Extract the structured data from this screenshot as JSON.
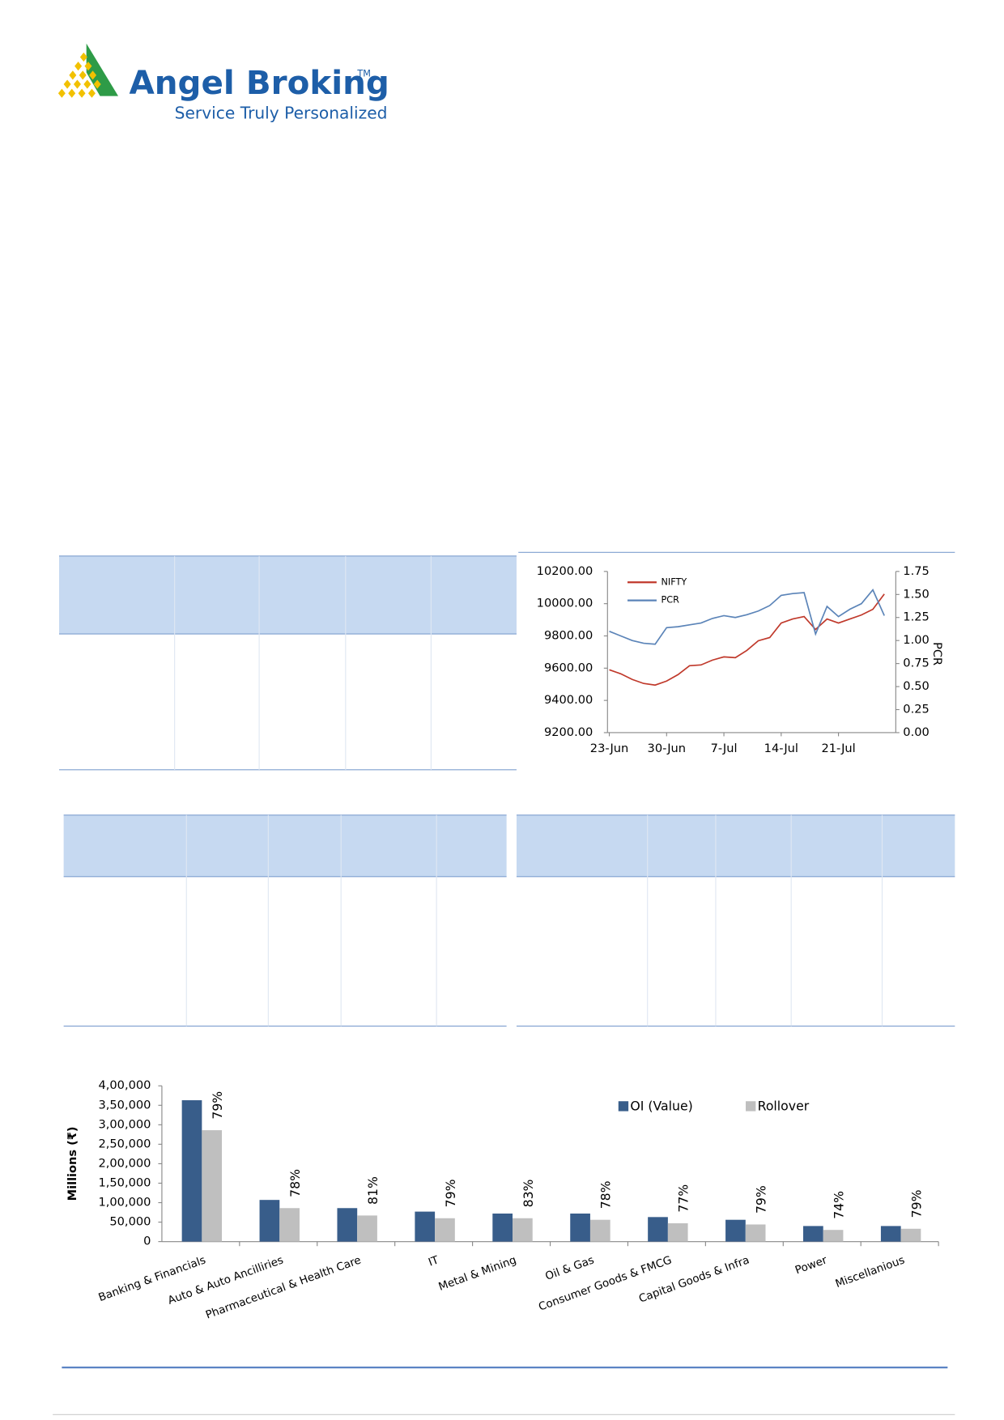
{
  "header": {
    "brand": "Angel Broking",
    "trademark": "TM",
    "tagline": "Service Truly Personalized"
  },
  "chart_data": [
    {
      "type": "line",
      "categories": [
        "23-Jun",
        null,
        null,
        null,
        null,
        "30-Jun",
        null,
        null,
        null,
        null,
        "7-Jul",
        null,
        null,
        null,
        null,
        "14-Jul",
        null,
        null,
        null,
        null,
        "21-Jul",
        null,
        null,
        null,
        null
      ],
      "series": [
        {
          "name": "NIFTY",
          "color": "#c0392b",
          "values": [
            9590,
            9565,
            9530,
            9505,
            9495,
            9520,
            9560,
            9615,
            9620,
            9650,
            9670,
            9665,
            9710,
            9770,
            9790,
            9880,
            9905,
            9920,
            9840,
            9905,
            9880,
            9905,
            9930,
            9965,
            10060
          ]
        },
        {
          "name": "PCR",
          "color": "#5b84b8",
          "axis": "y2",
          "values": [
            1.1,
            1.05,
            1.0,
            0.97,
            0.96,
            1.14,
            1.15,
            1.17,
            1.19,
            1.24,
            1.27,
            1.25,
            1.28,
            1.32,
            1.38,
            1.49,
            1.51,
            1.52,
            1.07,
            1.37,
            1.26,
            1.34,
            1.4,
            1.55,
            1.27
          ]
        }
      ],
      "ylim": [
        9200,
        10200
      ],
      "yticks": [
        {
          "value": 9200,
          "label": "9200.00"
        },
        {
          "value": 9400,
          "label": "9400.00"
        },
        {
          "value": 9600,
          "label": "9600.00"
        },
        {
          "value": 9800,
          "label": "9800.00"
        },
        {
          "value": 10000,
          "label": "10000.00"
        },
        {
          "value": 10200,
          "label": "10200.00"
        }
      ],
      "y2lim": [
        0,
        1.75
      ],
      "y2ticks": [
        {
          "value": 0,
          "label": "0.00"
        },
        {
          "value": 0.25,
          "label": "0.25"
        },
        {
          "value": 0.5,
          "label": "0.50"
        },
        {
          "value": 0.75,
          "label": "0.75"
        },
        {
          "value": 1,
          "label": "1.00"
        },
        {
          "value": 1.25,
          "label": "1.25"
        },
        {
          "value": 1.5,
          "label": "1.50"
        },
        {
          "value": 1.75,
          "label": "1.75"
        }
      ],
      "y2label": "PCR",
      "legend": "upper-left"
    },
    {
      "type": "bar",
      "categories": [
        "Banking & Financials",
        "Auto & Auto Ancilliries",
        "Pharmaceutical & Health Care",
        "IT",
        "Metal & Mining",
        "Oil & Gas",
        "Consumer Goods & FMCG",
        "Capital Goods & Infra",
        "Power",
        "Miscellanious"
      ],
      "ylabel": "Millions (₹)",
      "series": [
        {
          "name": "OI (Value)",
          "color": "#385d8a",
          "values": [
            363000,
            107000,
            86000,
            77000,
            72000,
            72000,
            63000,
            56000,
            40000,
            40000
          ]
        },
        {
          "name": "Rollover",
          "color": "#bfbfbf",
          "values": [
            286000,
            86000,
            67000,
            60000,
            60000,
            56000,
            47000,
            44000,
            30000,
            33000
          ]
        }
      ],
      "percent_labels": {
        "values": [
          79,
          78,
          81,
          79,
          83,
          78,
          77,
          79,
          74,
          79
        ],
        "value_labels": [
          "79%",
          "78%",
          "81%",
          "79%",
          "83%",
          "78%",
          "77%",
          "79%",
          "74%",
          "79%"
        ]
      },
      "ylim": [
        0,
        400000
      ],
      "yticks": [
        {
          "value": 0,
          "label": "0"
        },
        {
          "value": 50000,
          "label": "50,000"
        },
        {
          "value": 100000,
          "label": "1,00,000"
        },
        {
          "value": 150000,
          "label": "1,50,000"
        },
        {
          "value": 200000,
          "label": "2,00,000"
        },
        {
          "value": 250000,
          "label": "2,50,000"
        },
        {
          "value": 300000,
          "label": "3,00,000"
        },
        {
          "value": 350000,
          "label": "3,50,000"
        },
        {
          "value": 400000,
          "label": "4,00,000"
        }
      ],
      "legend": "upper-right"
    }
  ]
}
